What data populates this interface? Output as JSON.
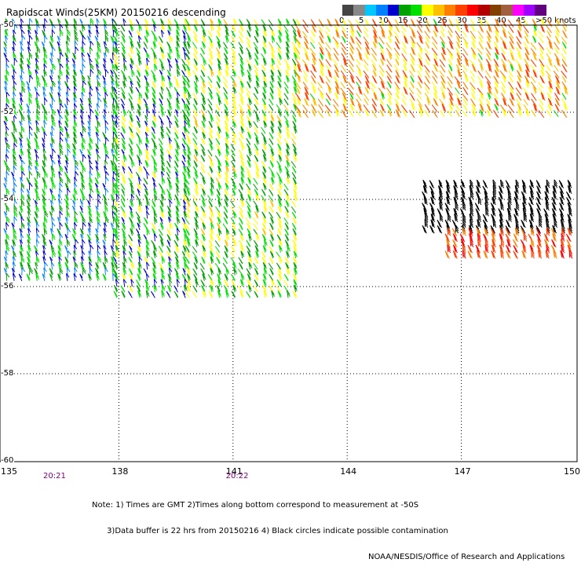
{
  "title": "Rapidscat Winds(25KM) 20150216 descending",
  "legend": {
    "colors": [
      "#444444",
      "#888888",
      "#00c8ff",
      "#0080ff",
      "#0000cc",
      "#00a000",
      "#00e000",
      "#ffff00",
      "#ffc000",
      "#ff8000",
      "#ff4000",
      "#ff0000",
      "#b00000",
      "#804000",
      "#a06040",
      "#ff00ff",
      "#a000ff",
      "#600080"
    ],
    "labels": [
      "0",
      "5",
      "10",
      "15",
      "20",
      "25",
      "30",
      "35",
      "40",
      "45",
      ">50 knots"
    ],
    "label_values": [
      0,
      5,
      10,
      15,
      20,
      25,
      30,
      35,
      40,
      45,
      50
    ]
  },
  "chart_data": {
    "type": "vector-field",
    "xlabel": "",
    "ylabel": "",
    "xlim": [
      135,
      150
    ],
    "ylim": [
      -60,
      -50
    ],
    "x_ticks": [
      "135",
      "138",
      "141",
      "144",
      "147",
      "150"
    ],
    "x_tick_values": [
      135,
      138,
      141,
      144,
      147,
      150
    ],
    "y_ticks": [
      "-50",
      "-52",
      "-54",
      "-56",
      "-58",
      "-60"
    ],
    "y_tick_values": [
      -50,
      -52,
      -54,
      -56,
      -58,
      -60
    ],
    "times": [
      {
        "label": "20:21",
        "lon": 136.3
      },
      {
        "label": "20:22",
        "lon": 141.1
      }
    ],
    "swaths": [
      {
        "name": "swath-1",
        "lon_min": 135.0,
        "lon_max": 137.9,
        "lat_min": -55.9,
        "lat_max": -50.0,
        "speed_range": [
          10,
          20
        ],
        "dir_deg": 260
      },
      {
        "name": "swath-1b",
        "lon_min": 137.9,
        "lon_max": 139.8,
        "lat_min": -56.3,
        "lat_max": -50.0,
        "speed_range": [
          13,
          22
        ],
        "dir_deg": 250
      },
      {
        "name": "swath-1c",
        "lon_min": 139.8,
        "lon_max": 142.7,
        "lat_min": -56.3,
        "lat_max": -50.0,
        "speed_range": [
          15,
          24
        ],
        "dir_deg": 245
      },
      {
        "name": "swath-2",
        "lon_min": 142.7,
        "lon_max": 149.8,
        "lat_min": -52.2,
        "lat_max": -50.0,
        "speed_range": [
          20,
          32
        ],
        "dir_deg": 240
      },
      {
        "name": "swath-3",
        "lon_min": 146.0,
        "lon_max": 150.0,
        "lat_min": -54.8,
        "lat_max": -53.7,
        "speed_range": [
          30,
          40
        ],
        "dir_deg": 255,
        "contaminated": true
      },
      {
        "name": "swath-4",
        "lon_min": 146.6,
        "lon_max": 150.0,
        "lat_min": -55.4,
        "lat_max": -54.8,
        "speed_range": [
          27,
          35
        ],
        "dir_deg": 255
      }
    ]
  },
  "footer": {
    "notes_line1": "Note: 1) Times are GMT 2)Times along bottom correspond to measurement at -50S",
    "notes_line2": "      3)Data buffer is 22 hrs from 20150216 4) Black circles indicate possible contamination",
    "credit": "NOAA/NESDIS/Office of Research and Applications"
  }
}
